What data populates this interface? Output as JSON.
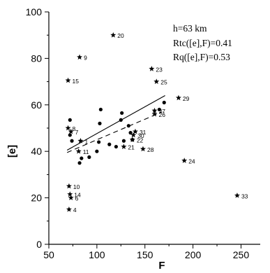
{
  "chart_data": {
    "type": "scatter",
    "xlabel": "F",
    "ylabel": "[e]",
    "xlim": [
      50,
      270
    ],
    "ylim": [
      0,
      100
    ],
    "x_ticks": [
      50,
      100,
      150,
      200,
      250
    ],
    "y_ticks": [
      0,
      20,
      40,
      60,
      80,
      100
    ],
    "x_minor_step": 25,
    "y_minor_step": 10,
    "grid": false,
    "legend": "none",
    "annotations": [
      "h=63 km",
      "Rtc([e],F)=0.41",
      "Rq([e],F)=0.53"
    ],
    "series": [
      {
        "marker": "circle",
        "points": [
          {
            "x": 72,
            "y": 53.5
          },
          {
            "x": 72,
            "y": 47
          },
          {
            "x": 74,
            "y": 44.5
          },
          {
            "x": 82,
            "y": 35
          },
          {
            "x": 84,
            "y": 37
          },
          {
            "x": 92,
            "y": 37.5
          },
          {
            "x": 100,
            "y": 40
          },
          {
            "x": 102,
            "y": 44
          },
          {
            "x": 103,
            "y": 52
          },
          {
            "x": 104,
            "y": 58
          },
          {
            "x": 113,
            "y": 43
          },
          {
            "x": 120,
            "y": 42
          },
          {
            "x": 125,
            "y": 53.5
          },
          {
            "x": 126,
            "y": 56.5
          },
          {
            "x": 128,
            "y": 44.5
          },
          {
            "x": 133,
            "y": 51
          },
          {
            "x": 135,
            "y": 48
          },
          {
            "x": 137,
            "y": 45
          },
          {
            "x": 165,
            "y": 58
          },
          {
            "x": 170,
            "y": 61
          }
        ]
      },
      {
        "marker": "star",
        "points": [
          {
            "x": 71,
            "y": 15,
            "label": "4"
          },
          {
            "x": 73,
            "y": 20,
            "label": "6"
          },
          {
            "x": 70,
            "y": 50,
            "label": "8"
          },
          {
            "x": 70,
            "y": 70.5,
            "label": "15"
          },
          {
            "x": 72,
            "y": 21.5,
            "label": "14"
          },
          {
            "x": 71,
            "y": 25,
            "label": "10"
          },
          {
            "x": 81,
            "y": 40,
            "label": "11"
          },
          {
            "x": 82,
            "y": 80.5,
            "label": "9"
          },
          {
            "x": 83,
            "y": 44.5,
            "label": "1"
          },
          {
            "x": 73,
            "y": 48.5,
            "label": "7"
          },
          {
            "x": 117,
            "y": 90,
            "label": "20"
          },
          {
            "x": 128,
            "y": 42,
            "label": "21"
          },
          {
            "x": 137,
            "y": 45,
            "label": "22"
          },
          {
            "x": 138,
            "y": 47,
            "label": "30"
          },
          {
            "x": 140,
            "y": 48.5,
            "label": "31"
          },
          {
            "x": 148,
            "y": 41,
            "label": "28"
          },
          {
            "x": 157,
            "y": 75.5,
            "label": "23"
          },
          {
            "x": 160,
            "y": 56,
            "label": "26"
          },
          {
            "x": 160,
            "y": 57.5,
            "label": "27"
          },
          {
            "x": 162,
            "y": 70,
            "label": "25"
          },
          {
            "x": 185,
            "y": 63,
            "label": "29"
          },
          {
            "x": 191,
            "y": 36,
            "label": "24"
          },
          {
            "x": 246,
            "y": 21,
            "label": "33"
          }
        ]
      }
    ],
    "lines": [
      {
        "style": "solid",
        "x": [
          69,
          171
        ],
        "y": [
          40.5,
          64
        ]
      },
      {
        "style": "dashed",
        "x": [
          69,
          168
        ],
        "y": [
          39.5,
          57
        ]
      }
    ]
  }
}
